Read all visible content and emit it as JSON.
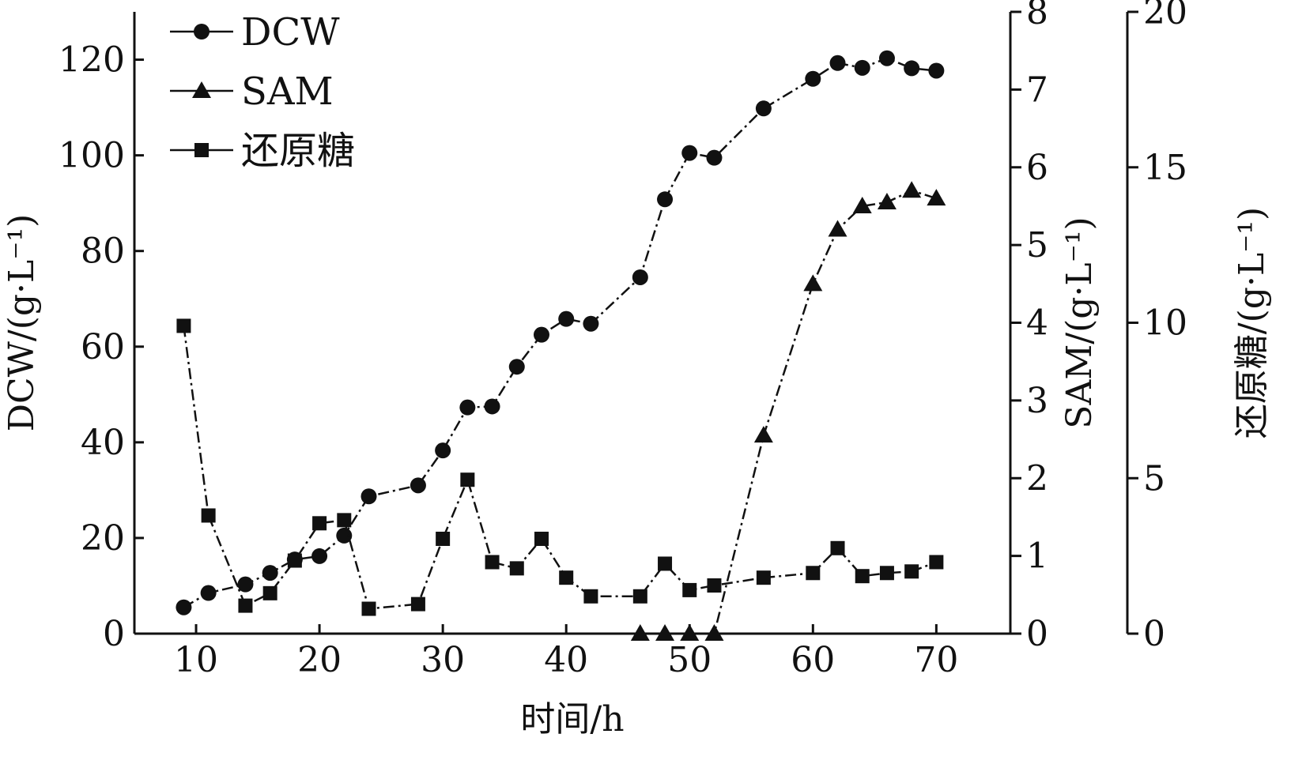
{
  "chart_data": {
    "type": "line",
    "x_axis": {
      "label": "时间/h",
      "range": [
        5,
        76
      ],
      "ticks": [
        10,
        20,
        30,
        40,
        50,
        60,
        70
      ]
    },
    "y_axes": [
      {
        "id": "left",
        "label": "DCW/(g·L⁻¹)",
        "range": [
          0,
          130
        ],
        "ticks": [
          0,
          20,
          40,
          60,
          80,
          100,
          120
        ]
      },
      {
        "id": "right1",
        "label": "SAM/(g·L⁻¹)",
        "range": [
          0,
          8
        ],
        "ticks": [
          0,
          1,
          2,
          3,
          4,
          5,
          6,
          7,
          8
        ]
      },
      {
        "id": "right2",
        "label": "还原糖/(g·L⁻¹)",
        "range": [
          0,
          20
        ],
        "ticks": [
          0,
          5,
          10,
          15,
          20
        ]
      }
    ],
    "legend": {
      "placement": "top-left"
    },
    "grid": false,
    "series": [
      {
        "name": "DCW",
        "axis": "left",
        "marker": "circle",
        "x": [
          9,
          11,
          14,
          16,
          18,
          20,
          22,
          24,
          28,
          30,
          32,
          34,
          36,
          38,
          40,
          42,
          46,
          48,
          50,
          52,
          56,
          60,
          62,
          64,
          66,
          68,
          70
        ],
        "y": [
          5.5,
          8.5,
          10.3,
          12.7,
          15.5,
          16.2,
          20.5,
          28.7,
          31,
          38.3,
          47.3,
          47.5,
          55.8,
          62.5,
          65.8,
          64.8,
          74.5,
          90.8,
          100.5,
          99.5,
          109.8,
          116,
          119.3,
          118.3,
          120.3,
          118.2,
          117.7
        ]
      },
      {
        "name": "SAM",
        "axis": "right1",
        "marker": "triangle",
        "x": [
          46,
          48,
          50,
          52,
          56,
          60,
          62,
          64,
          66,
          68,
          70
        ],
        "y": [
          0,
          0,
          0,
          0,
          2.55,
          4.5,
          5.2,
          5.5,
          5.55,
          5.7,
          5.6
        ]
      },
      {
        "name": "还原糖",
        "axis": "right2",
        "marker": "square",
        "x": [
          9,
          11,
          14,
          16,
          18,
          20,
          22,
          24,
          28,
          30,
          32,
          34,
          36,
          38,
          40,
          42,
          46,
          48,
          50,
          52,
          56,
          60,
          62,
          64,
          66,
          68,
          70
        ],
        "y": [
          9.9,
          3.8,
          0.9,
          1.3,
          2.35,
          3.55,
          3.65,
          0.8,
          0.95,
          3.05,
          4.95,
          2.3,
          2.1,
          3.05,
          1.8,
          1.2,
          1.2,
          2.25,
          1.4,
          1.55,
          1.8,
          1.95,
          2.75,
          1.85,
          1.95,
          2.0,
          2.3
        ]
      }
    ]
  }
}
